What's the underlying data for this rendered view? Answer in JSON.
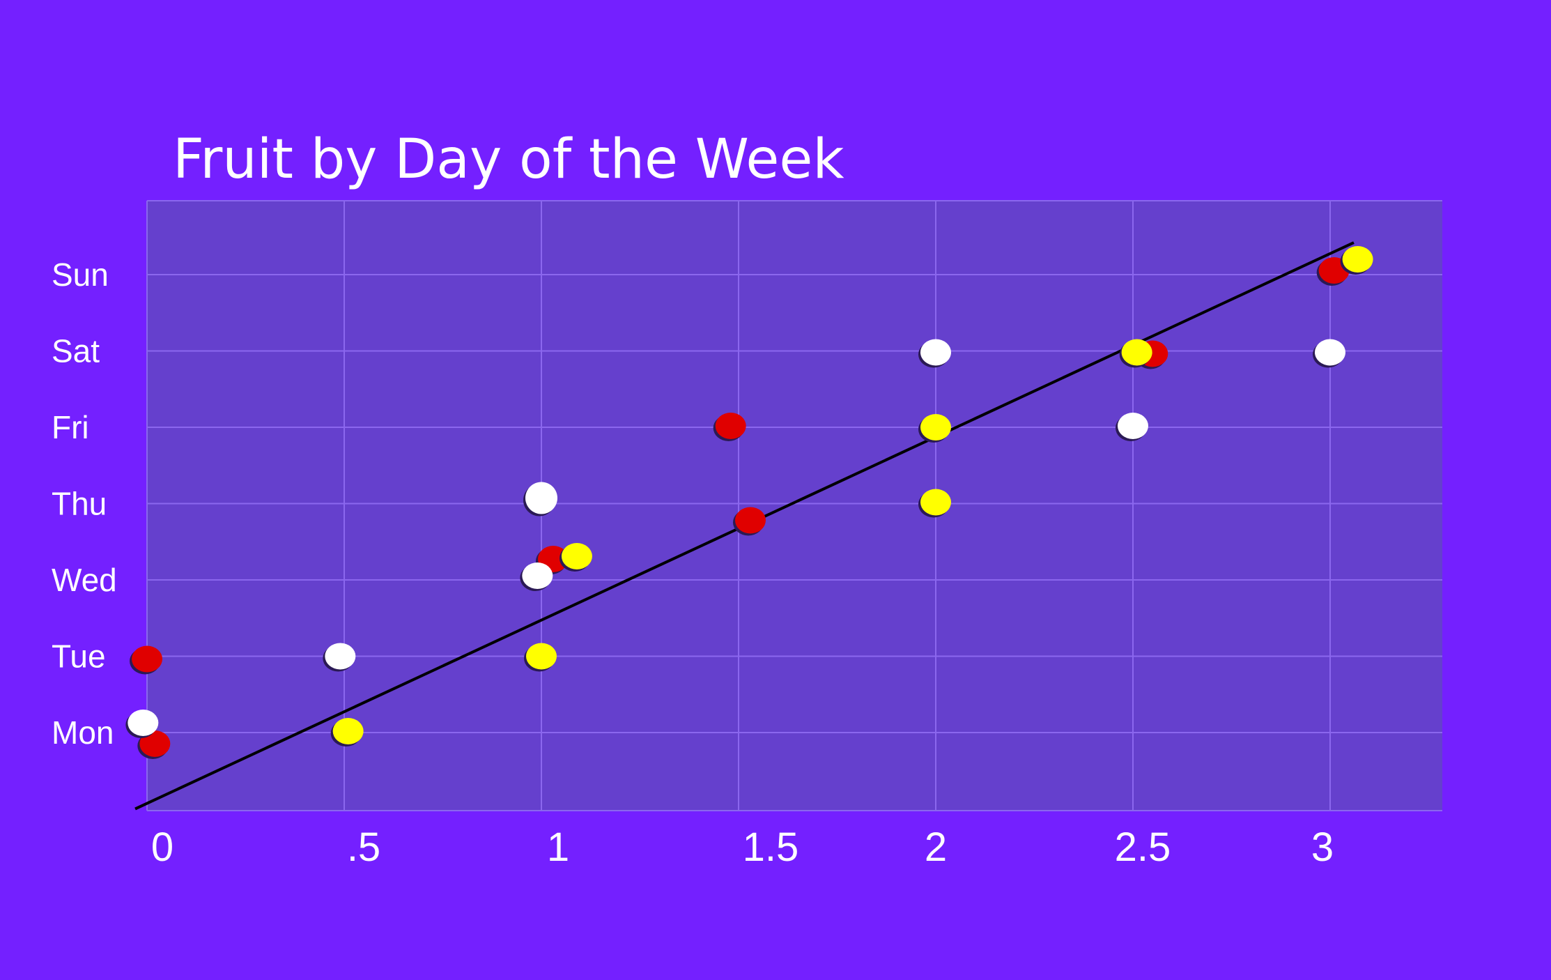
{
  "chart_data": {
    "type": "scatter",
    "title": "Fruit by Day of the Week",
    "xlabel": "",
    "ylabel": "",
    "xlim": [
      0,
      3.3
    ],
    "x_ticks": [
      {
        "value": 0,
        "label": "0"
      },
      {
        "value": 0.5,
        "label": ".5"
      },
      {
        "value": 1,
        "label": "1"
      },
      {
        "value": 1.5,
        "label": "1.5"
      },
      {
        "value": 2,
        "label": "2"
      },
      {
        "value": 2.5,
        "label": "2.5"
      },
      {
        "value": 3,
        "label": "3"
      }
    ],
    "y_categories": [
      "Mon",
      "Tue",
      "Wed",
      "Thu",
      "Fri",
      "Sat",
      "Sun"
    ],
    "grid": true,
    "series": [
      {
        "color": "#E00000",
        "points": [
          {
            "x": 0.02,
            "y": "Mon"
          },
          {
            "x": 0.0,
            "y": "Tue"
          },
          {
            "x": 1.03,
            "y": "Wed"
          },
          {
            "x": 1.53,
            "y": "Thu"
          },
          {
            "x": 1.48,
            "y": "Fri"
          },
          {
            "x": 2.55,
            "y": "Sat"
          },
          {
            "x": 3.01,
            "y": "Sun"
          }
        ]
      },
      {
        "color": "#FFFF00",
        "points": [
          {
            "x": 0.51,
            "y": "Mon"
          },
          {
            "x": 1.0,
            "y": "Tue"
          },
          {
            "x": 1.09,
            "y": "Wed"
          },
          {
            "x": 2.0,
            "y": "Thu"
          },
          {
            "x": 2.0,
            "y": "Fri"
          },
          {
            "x": 2.51,
            "y": "Sat"
          },
          {
            "x": 3.07,
            "y": "Sun"
          }
        ]
      },
      {
        "color": "#FFFFFF",
        "points": [
          {
            "x": -0.01,
            "y": "Mon"
          },
          {
            "x": 0.49,
            "y": "Tue"
          },
          {
            "x": 0.99,
            "y": "Wed"
          },
          {
            "x": 1.0,
            "y": "Thu"
          },
          {
            "x": 2.5,
            "y": "Fri"
          },
          {
            "x": 2.0,
            "y": "Sat"
          },
          {
            "x": 3.0,
            "y": "Sat"
          }
        ]
      }
    ],
    "trendline": {
      "color": "#000000",
      "from": {
        "x": -0.03,
        "y": 0.0
      },
      "to": {
        "x": 3.06,
        "y": 7.42
      }
    },
    "colors": {
      "background": "#7420FF",
      "plot_area": "#6540CD",
      "grid": "#8B67EE"
    }
  }
}
